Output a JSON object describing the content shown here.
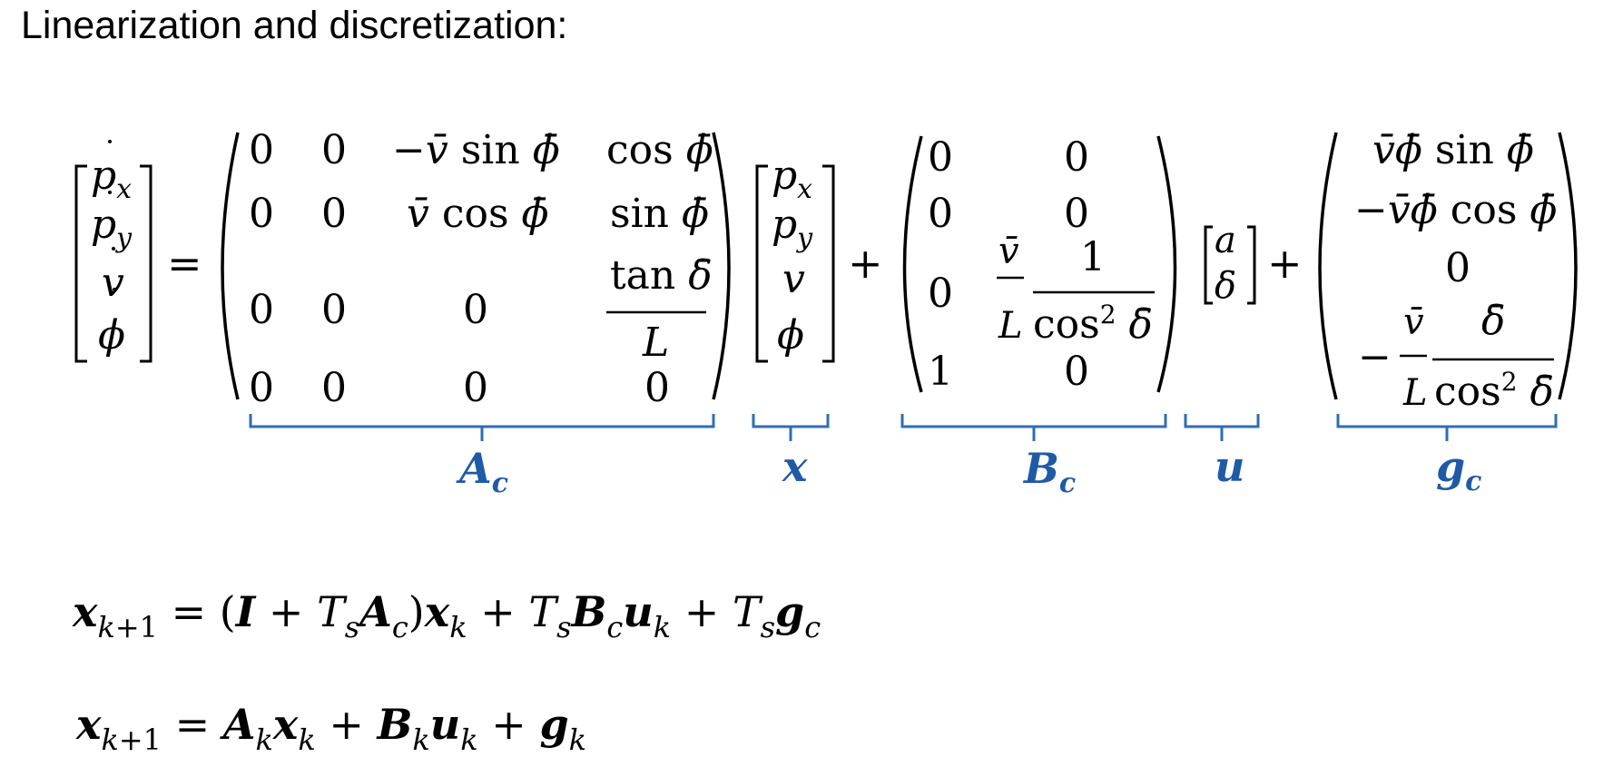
{
  "heading": "Linearization and discretization:",
  "lhs_vector": [
    "ṗx",
    "ṗy",
    "v̇",
    "ϕ̇"
  ],
  "equals": "=",
  "plus": "+",
  "Ac_matrix": {
    "rows": [
      [
        "0",
        "0",
        "−v̄ sin ϕ̄",
        "cos ϕ̄"
      ],
      [
        "0",
        "0",
        "v̄ cos ϕ̄",
        "sin ϕ̄"
      ],
      [
        "0",
        "0",
        "0",
        "tan δ̄ / L"
      ],
      [
        "0",
        "0",
        "0",
        "0"
      ]
    ]
  },
  "x_vector": [
    "px",
    "py",
    "v",
    "ϕ"
  ],
  "Bc_matrix": {
    "rows": [
      [
        "0",
        "0"
      ],
      [
        "0",
        "0"
      ],
      [
        "0",
        "v̄/L · 1/cos² δ̄"
      ],
      [
        "1",
        "0"
      ]
    ]
  },
  "u_vector": [
    "a",
    "δ"
  ],
  "gc_vector": [
    "v̄ϕ̄ sin ϕ̄",
    "−v̄ϕ̄ cos ϕ̄",
    "0",
    "− v̄/L · δ̄/cos² δ̄"
  ],
  "underbrace_labels": [
    "Ac",
    "x",
    "Bc",
    "u",
    "gc"
  ],
  "equation_continuous_to_discrete": "xk+1 = (I + TsAc)xk + TsBcuk + Tsgc",
  "equation_discrete": "xk+1 = Akxk + Bkuk + gk",
  "colors": {
    "text": "#000000",
    "annotation": "#1f5aa6"
  }
}
